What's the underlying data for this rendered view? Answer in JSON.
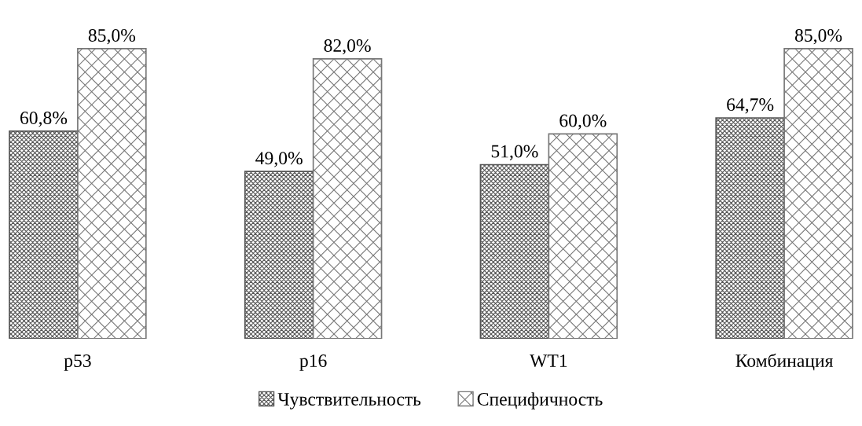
{
  "chart_data": {
    "type": "bar",
    "categories": [
      "p53",
      "p16",
      "WT1",
      "Комбинация"
    ],
    "series": [
      {
        "name": "Чувствительность",
        "color": "#555555",
        "values": [
          60.8,
          49.0,
          51.0,
          64.7
        ],
        "value_labels": [
          "60,8%",
          "49,0%",
          "51,0%",
          "64,7%"
        ]
      },
      {
        "name": "Специфичность",
        "color": "#777777",
        "values": [
          85.0,
          82.0,
          60.0,
          85.0
        ],
        "value_labels": [
          "85,0%",
          "82,0%",
          "60,0%",
          "85,0%"
        ]
      }
    ],
    "legend": "bottom",
    "grid": false
  }
}
